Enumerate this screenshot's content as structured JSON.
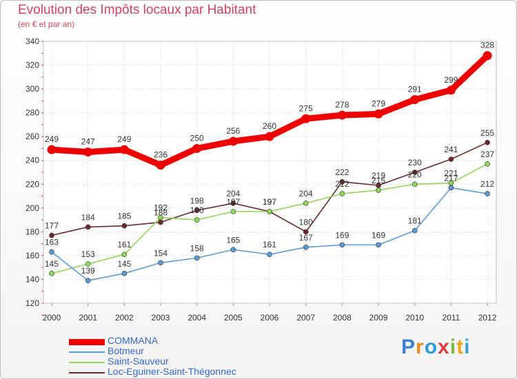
{
  "chart_data": {
    "type": "line",
    "title": "Evolution des Impôts locaux par Habitant",
    "subtitle": "(en € et par an)",
    "xlabel": "",
    "ylabel": "",
    "ylim": [
      120,
      340
    ],
    "yticks": [
      120,
      140,
      160,
      180,
      200,
      220,
      240,
      260,
      280,
      300,
      320,
      340
    ],
    "grid": true,
    "legend_position": "bottom-left",
    "categories": [
      "2000",
      "2001",
      "2002",
      "2003",
      "2004",
      "2005",
      "2006",
      "2007",
      "2008",
      "2009",
      "2010",
      "2011",
      "2012"
    ],
    "series": [
      {
        "name": "COMMANA",
        "color": "#ee0000",
        "values": [
          249,
          247,
          249,
          236,
          250,
          256,
          260,
          275,
          278,
          279,
          291,
          299,
          328
        ]
      },
      {
        "name": "Botmeur",
        "color": "#5b9bd5",
        "values": [
          163,
          139,
          145,
          154,
          158,
          165,
          161,
          167,
          169,
          169,
          181,
          217,
          212
        ]
      },
      {
        "name": "Saint-Sauveur",
        "color": "#8ed65a",
        "values": [
          145,
          153,
          161,
          192,
          190,
          197,
          197,
          204,
          212,
          215,
          220,
          221,
          237
        ]
      },
      {
        "name": "Loc-Eguiner-Saint-Thégonnec",
        "color": "#6b2a2a",
        "values": [
          177,
          184,
          185,
          188,
          198,
          204,
          197,
          180,
          222,
          219,
          230,
          241,
          255
        ]
      }
    ]
  },
  "branding": {
    "logo_text": "Proxiti",
    "logo_colors": [
      "#3a7fd5",
      "#f08a1c",
      "#2e9ad8",
      "#e23a3a",
      "#79b83a",
      "#f0a21c",
      "#3aa0d8"
    ]
  }
}
